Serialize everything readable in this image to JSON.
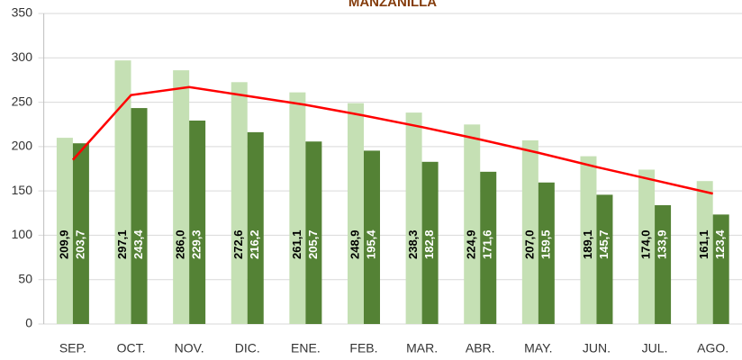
{
  "chart_data": {
    "type": "bar",
    "title": "MANZANILLA",
    "categories": [
      "SEP.",
      "OCT.",
      "NOV.",
      "DIC.",
      "ENE.",
      "FEB.",
      "MAR.",
      "ABR.",
      "MAY.",
      "JUN.",
      "JUL.",
      "AGO."
    ],
    "series": [
      {
        "color": "#c5e0b4",
        "label_color": "#000000",
        "values": [
          209.9,
          297.1,
          286.0,
          272.6,
          261.1,
          248.9,
          238.3,
          224.9,
          207.0,
          189.1,
          174.0,
          161.1
        ],
        "value_labels": [
          "209,9",
          "297,1",
          "286,0",
          "272,6",
          "261,1",
          "248,9",
          "238,3",
          "224,9",
          "207,0",
          "189,1",
          "174,0",
          "161,1"
        ]
      },
      {
        "color": "#548235",
        "label_color": "#ffffff",
        "values": [
          203.7,
          243.4,
          229.3,
          216.2,
          205.7,
          195.4,
          182.8,
          171.6,
          159.5,
          145.7,
          133.9,
          123.4
        ],
        "value_labels": [
          "203,7",
          "243,4",
          "229,3",
          "216,2",
          "205,7",
          "195,4",
          "182,8",
          "171,6",
          "159,5",
          "145,7",
          "133,9",
          "123,4"
        ]
      },
      {
        "type": "line",
        "color": "#ff0000",
        "values": [
          185,
          258,
          267,
          257,
          247,
          235,
          222,
          208,
          193,
          177,
          162,
          147
        ]
      }
    ],
    "ylim": [
      0,
      350
    ],
    "yticks": [
      0,
      50,
      100,
      150,
      200,
      250,
      300,
      350
    ],
    "grid": true
  }
}
